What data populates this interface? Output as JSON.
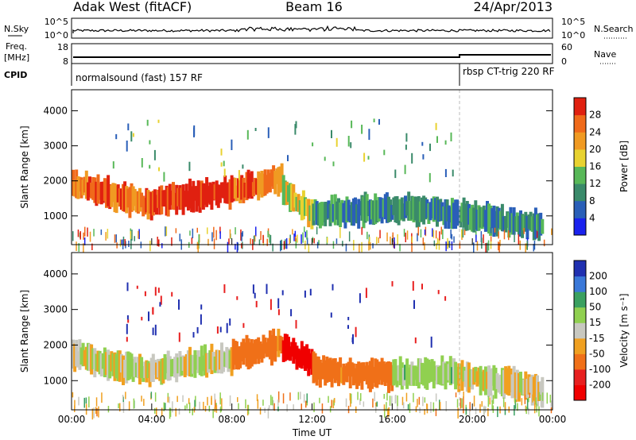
{
  "header": {
    "station": "Adak West (fitACF)",
    "beam": "Beam 16",
    "date": "24/Apr/2013"
  },
  "strips": {
    "nsky_label": "N.Sky",
    "nsearch_label": "N.Search",
    "freq_label_1": "Freq.",
    "freq_label_2": "[MHz]",
    "nave_label": "Nave",
    "cpid_label": "CPID",
    "noise_left_ticks": [
      "10^5",
      "10^0"
    ],
    "noise_right_ticks": [
      "10^5",
      "10^0"
    ],
    "freq_left_ticks": [
      "18",
      "8"
    ],
    "freq_right_ticks": [
      "60",
      "0"
    ],
    "cpid_segments": [
      "normalsound (fast) 157 RF",
      "rbsp CT-trig 220 RF"
    ]
  },
  "chart_data": [
    {
      "type": "heatmap",
      "title": "",
      "xlabel": "Time UT",
      "ylabel": "Slant Range [km]",
      "x_ticks": [
        "00:00",
        "04:00",
        "08:00",
        "12:00",
        "16:00",
        "20:00",
        "00:00"
      ],
      "y_ticks": [
        1000,
        2000,
        3000,
        4000
      ],
      "xlim_hours": [
        0,
        24
      ],
      "ylim_km": [
        180,
        4600
      ],
      "colorbar": {
        "label": "Power [dB]",
        "ticks": [
          "4",
          "8",
          "12",
          "16",
          "20",
          "24",
          "28"
        ],
        "colors": [
          "#1a22ee",
          "#2a5fb8",
          "#3a8a6a",
          "#58b858",
          "#e8d230",
          "#f09a22",
          "#f06a1a",
          "#e02010"
        ]
      },
      "bands": [
        {
          "t0": 0,
          "t1": 4,
          "r0": 1900,
          "r1": 1300,
          "level": 24
        },
        {
          "t0": 4,
          "t1": 8,
          "r0": 1400,
          "r1": 1700,
          "level": 28
        },
        {
          "t0": 8,
          "t1": 10.5,
          "r0": 1700,
          "r1": 2100,
          "level": 24
        },
        {
          "t0": 10.5,
          "t1": 12,
          "r0": 1700,
          "r1": 1050,
          "level": 16
        },
        {
          "t0": 12,
          "t1": 17,
          "r0": 1100,
          "r1": 1200,
          "level": 8
        },
        {
          "t0": 17,
          "t1": 23.5,
          "r0": 1200,
          "r1": 700,
          "level": 8
        }
      ]
    },
    {
      "type": "heatmap",
      "title": "",
      "xlabel": "Time UT",
      "ylabel": "Slant Range [km]",
      "x_ticks": [
        "00:00",
        "04:00",
        "08:00",
        "12:00",
        "16:00",
        "20:00",
        "00:00"
      ],
      "y_ticks": [
        1000,
        2000,
        3000,
        4000
      ],
      "xlim_hours": [
        0,
        24
      ],
      "ylim_km": [
        180,
        4600
      ],
      "colorbar": {
        "label": "Velocity [m s⁻¹]",
        "ticks": [
          "200",
          "100",
          "50",
          "15",
          "-15",
          "-50",
          "-100",
          "-200"
        ],
        "colors": [
          "#2030b0",
          "#3a78d8",
          "#3aa060",
          "#90d050",
          "#c8c8c0",
          "#f0a020",
          "#f07018",
          "#e82020",
          "#f00000"
        ]
      },
      "bands": [
        {
          "t0": 0,
          "t1": 4,
          "r0": 1700,
          "r1": 1200,
          "level": 0
        },
        {
          "t0": 4,
          "t1": 8,
          "r0": 1300,
          "r1": 1600,
          "level": 0
        },
        {
          "t0": 8,
          "t1": 10.5,
          "r0": 1700,
          "r1": 2000,
          "level": -50
        },
        {
          "t0": 10.5,
          "t1": 12,
          "r0": 1900,
          "r1": 1500,
          "level": -200
        },
        {
          "t0": 12,
          "t1": 16,
          "r0": 1300,
          "r1": 1150,
          "level": -50
        },
        {
          "t0": 16,
          "t1": 19,
          "r0": 1200,
          "r1": 1200,
          "level": 15
        },
        {
          "t0": 19,
          "t1": 23.5,
          "r0": 1200,
          "r1": 750,
          "level": 0
        }
      ]
    }
  ]
}
